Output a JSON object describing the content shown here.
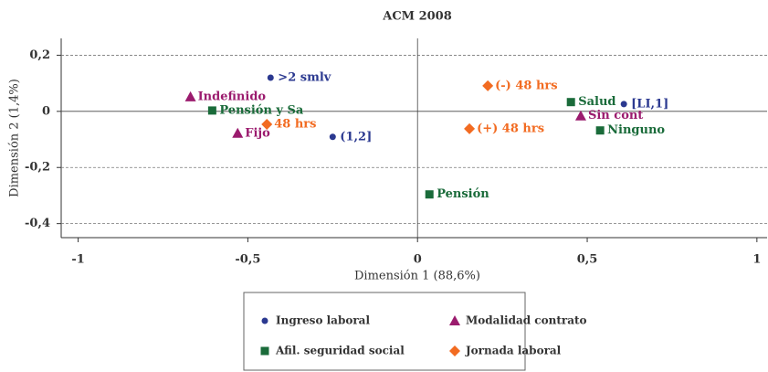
{
  "chart_data": {
    "type": "scatter",
    "title": "ACM 2008",
    "xlabel": "Dimensión 1 (88,6%)",
    "ylabel": "Dimensión 2 (1,4%)",
    "xlim": [
      -1.05,
      1.03
    ],
    "ylim": [
      -0.45,
      0.26
    ],
    "xticks": [
      -1,
      {
        "value": -0.5,
        "label": "-0,5"
      },
      0,
      {
        "value": 0.5,
        "label": "0,5"
      },
      1
    ],
    "yticks": [
      {
        "value": 0.2,
        "label": "0,2"
      },
      0,
      {
        "value": -0.2,
        "label": "-0,2"
      },
      {
        "value": -0.4,
        "label": "-0,4"
      }
    ],
    "grid": true,
    "legend": "bottom",
    "series": [
      {
        "name": "Ingreso laboral",
        "color": "#2b3990",
        "marker": "circle",
        "x": [
          -0.433,
          -0.25,
          0.608
        ],
        "y": [
          0.12,
          -0.091,
          0.026
        ],
        "labels": [
          ">2 smlv",
          "(1,2]",
          "[LI,1]"
        ]
      },
      {
        "name": "Modalidad contrato",
        "color": "#9b1b6e",
        "marker": "triangle",
        "x": [
          -0.669,
          -0.53,
          0.481
        ],
        "y": [
          0.052,
          -0.078,
          -0.016
        ],
        "labels": [
          "Indefinido",
          "Fijo",
          "Sin cont"
        ]
      },
      {
        "name": "Afil. seguridad social",
        "color": "#1a6b3a",
        "marker": "square",
        "x": [
          -0.605,
          0.452,
          0.538,
          0.035
        ],
        "y": [
          0.003,
          0.033,
          -0.068,
          -0.296
        ],
        "labels": [
          "Pensión y Sa",
          "Salud",
          "Ninguno",
          "Pensión"
        ]
      },
      {
        "name": "Jornada laboral",
        "color": "#f26b21",
        "marker": "diamond",
        "x": [
          -0.444,
          0.207,
          0.153
        ],
        "y": [
          -0.046,
          0.091,
          -0.062
        ],
        "labels": [
          "48 hrs",
          "(-) 48 hrs",
          "(+) 48 hrs"
        ]
      }
    ]
  }
}
